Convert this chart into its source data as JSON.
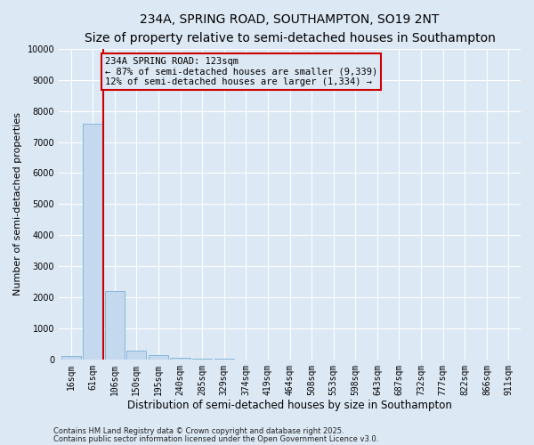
{
  "title": "234A, SPRING ROAD, SOUTHAMPTON, SO19 2NT",
  "subtitle": "Size of property relative to semi-detached houses in Southampton",
  "xlabel": "Distribution of semi-detached houses by size in Southampton",
  "ylabel": "Number of semi-detached properties",
  "footer1": "Contains HM Land Registry data © Crown copyright and database right 2025.",
  "footer2": "Contains public sector information licensed under the Open Government Licence v3.0.",
  "categories": [
    "16sqm",
    "61sqm",
    "106sqm",
    "150sqm",
    "195sqm",
    "240sqm",
    "285sqm",
    "329sqm",
    "374sqm",
    "419sqm",
    "464sqm",
    "508sqm",
    "553sqm",
    "598sqm",
    "643sqm",
    "687sqm",
    "732sqm",
    "777sqm",
    "822sqm",
    "866sqm",
    "911sqm"
  ],
  "values": [
    100,
    7600,
    2200,
    270,
    130,
    50,
    25,
    12,
    7,
    4,
    3,
    2,
    1,
    1,
    1,
    0,
    0,
    0,
    0,
    0,
    0
  ],
  "bar_color": "#c5d9ee",
  "bar_edge_color": "#7aafd4",
  "red_line_x": 1.5,
  "red_line_color": "#cc0000",
  "annotation_text": "234A SPRING ROAD: 123sqm\n← 87% of semi-detached houses are smaller (9,339)\n12% of semi-detached houses are larger (1,334) →",
  "annotation_box_color": "#cc0000",
  "ylim": [
    0,
    10000
  ],
  "yticks": [
    0,
    1000,
    2000,
    3000,
    4000,
    5000,
    6000,
    7000,
    8000,
    9000,
    10000
  ],
  "bg_color": "#dce8f4",
  "grid_color": "#ffffff",
  "title_fontsize": 10,
  "subtitle_fontsize": 8.5,
  "tick_fontsize": 7,
  "ylabel_fontsize": 8,
  "xlabel_fontsize": 8.5,
  "footer_fontsize": 6,
  "annotation_fontsize": 7.5
}
